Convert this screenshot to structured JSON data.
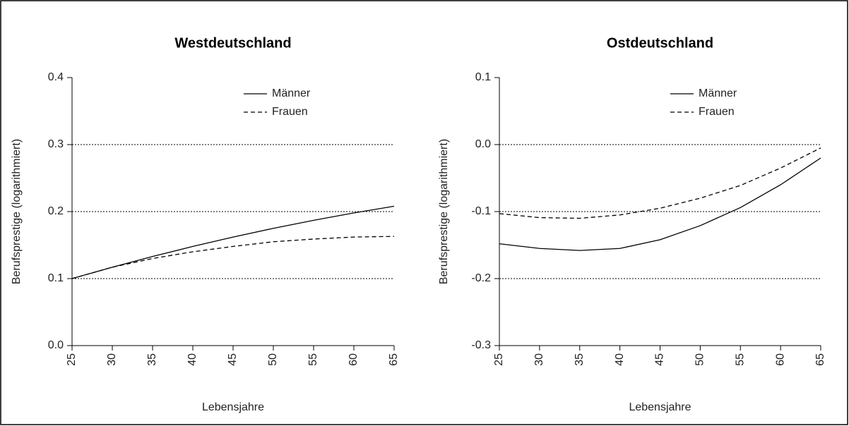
{
  "chart_data": [
    {
      "type": "line",
      "title": "Westdeutschland",
      "x_label": "Lebensjahre",
      "y_label": "Berufsprestige (logarithmiert)",
      "x": [
        25,
        30,
        35,
        40,
        45,
        50,
        55,
        60,
        65
      ],
      "series": [
        {
          "name": "Männer",
          "color": "#000000",
          "linestyle": "solid",
          "values": [
            0.1,
            0.117,
            0.133,
            0.148,
            0.162,
            0.175,
            0.187,
            0.198,
            0.208
          ]
        },
        {
          "name": "Frauen",
          "color": "#000000",
          "linestyle": "dashed",
          "values": [
            0.1,
            0.117,
            0.13,
            0.14,
            0.148,
            0.155,
            0.159,
            0.162,
            0.163
          ]
        }
      ],
      "xlim": [
        25,
        65
      ],
      "xticks": [
        25,
        30,
        35,
        40,
        45,
        50,
        55,
        60,
        65
      ],
      "ylim": [
        0,
        0.4
      ],
      "yticks": [
        {
          "value": 0,
          "label": "0.0"
        },
        0.1,
        0.2,
        0.3,
        0.4
      ],
      "grid": true,
      "legend": "top-right"
    },
    {
      "type": "line",
      "title": "Ostdeutschland",
      "x_label": "Lebensjahre",
      "y_label": "Berufsprestige (logarithmiert)",
      "x": [
        25,
        30,
        35,
        40,
        45,
        50,
        55,
        60,
        65
      ],
      "series": [
        {
          "name": "Männer",
          "color": "#000000",
          "linestyle": "solid",
          "values": [
            -0.148,
            -0.155,
            -0.158,
            -0.155,
            -0.142,
            -0.121,
            -0.094,
            -0.06,
            -0.02
          ]
        },
        {
          "name": "Frauen",
          "color": "#000000",
          "linestyle": "dashed",
          "values": [
            -0.103,
            -0.109,
            -0.11,
            -0.105,
            -0.095,
            -0.08,
            -0.061,
            -0.035,
            -0.005
          ]
        }
      ],
      "xlim": [
        25,
        65
      ],
      "xticks": [
        25,
        30,
        35,
        40,
        45,
        50,
        55,
        60,
        65
      ],
      "ylim": [
        -0.3,
        0.1
      ],
      "yticks": [
        -0.3,
        -0.2,
        -0.1,
        {
          "value": 0,
          "label": "0.0"
        },
        0.1
      ],
      "grid": true,
      "legend": "top-right"
    }
  ]
}
